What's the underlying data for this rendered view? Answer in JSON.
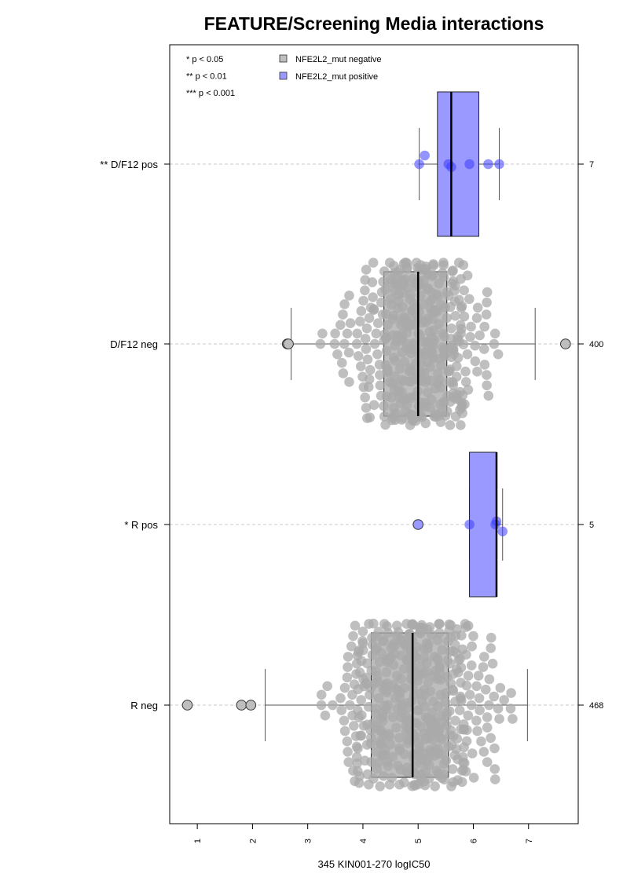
{
  "chart_data": {
    "type": "boxplot-beeswarm",
    "title": "FEATURE/Screening Media interactions",
    "xlabel": "345 KIN001-270 logIC50",
    "x_ticks": [
      "1",
      "2",
      "3",
      "4",
      "5",
      "6",
      "7"
    ],
    "xlim": [
      0.5,
      7.9
    ],
    "legend": {
      "placement": "top-left",
      "significance": [
        "* p < 0.05",
        "** p < 0.01",
        "*** p < 0.001"
      ],
      "entries": [
        {
          "label": "NFE2L2_mut negative",
          "color": "#bebebe"
        },
        {
          "label": "NFE2L2_mut positive",
          "color": "#9999ff"
        }
      ]
    },
    "groups": [
      {
        "label": "** D/F12 pos",
        "count": "7",
        "series": "NFE2L2_mut positive",
        "color": "#9999ff",
        "whisker_low": 5.02,
        "q1": 5.35,
        "median": 5.6,
        "q3": 6.1,
        "whisker_high": 6.47,
        "outliers": [],
        "points": [
          5.02,
          5.12,
          5.55,
          5.6,
          5.93,
          6.27,
          6.47
        ],
        "swarm_spread": 0.22
      },
      {
        "label": "D/F12 neg",
        "count": "400",
        "series": "NFE2L2_mut negative",
        "color": "#bebebe",
        "whisker_low": 2.7,
        "q1": 4.38,
        "median": 5.0,
        "q3": 5.52,
        "whisker_high": 7.12,
        "outliers": [
          2.63,
          2.65,
          7.67
        ],
        "swarm_spread": 0.88
      },
      {
        "label": "* R pos",
        "count": "5",
        "series": "NFE2L2_mut positive",
        "color": "#9999ff",
        "whisker_low": 5.93,
        "q1": 5.93,
        "median": 6.42,
        "q3": 6.42,
        "whisker_high": 6.53,
        "outliers": [
          5.0
        ],
        "points": [
          5.93,
          6.4,
          6.42,
          6.53
        ],
        "swarm_spread": 0.12
      },
      {
        "label": "R neg",
        "count": "468",
        "series": "NFE2L2_mut negative",
        "color": "#bebebe",
        "whisker_low": 2.23,
        "q1": 4.15,
        "median": 4.9,
        "q3": 5.55,
        "whisker_high": 6.98,
        "outliers": [
          0.82,
          1.8,
          1.97
        ],
        "swarm_spread": 0.88
      }
    ]
  }
}
